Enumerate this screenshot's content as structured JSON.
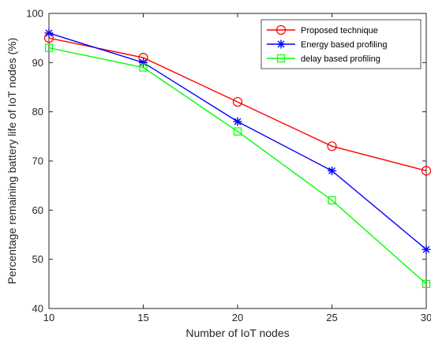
{
  "chart_data": {
    "type": "line",
    "title": "",
    "xlabel": "Number of IoT nodes",
    "ylabel": "Percentage remaining battery life of IoT nodes (%)",
    "xlim": [
      10,
      30
    ],
    "ylim": [
      40,
      100
    ],
    "xticks": [
      10,
      15,
      20,
      25,
      30
    ],
    "yticks": [
      40,
      50,
      60,
      70,
      80,
      90,
      100
    ],
    "x": [
      10,
      15,
      20,
      25,
      30
    ],
    "grid": false,
    "legend_position": "top-right",
    "series": [
      {
        "name": "Proposed technique",
        "values": [
          95,
          91,
          82,
          73,
          68
        ],
        "color": "#ff0000",
        "marker": "circle"
      },
      {
        "name": "Energy based profiling",
        "values": [
          96,
          90,
          78,
          68,
          52
        ],
        "color": "#0000ff",
        "marker": "asterisk"
      },
      {
        "name": "delay based profiling",
        "values": [
          93,
          89,
          76,
          62,
          45
        ],
        "color": "#00ff00",
        "marker": "square"
      }
    ]
  }
}
